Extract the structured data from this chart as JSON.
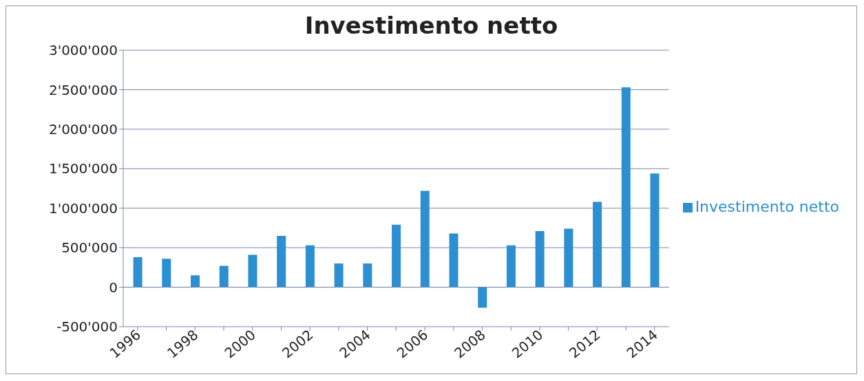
{
  "chart_data": {
    "type": "bar",
    "title": "Investimento netto",
    "categories": [
      "1996",
      null,
      "1998",
      null,
      "2000",
      null,
      "2002",
      null,
      "2004",
      null,
      "2006",
      null,
      "2008",
      null,
      "2010",
      null,
      "2012",
      null,
      "2014"
    ],
    "series": [
      {
        "name": "Investimento netto",
        "color": "#2b8fd1",
        "values": [
          380000,
          360000,
          150000,
          270000,
          410000,
          650000,
          530000,
          300000,
          300000,
          790000,
          1220000,
          680000,
          -260000,
          530000,
          710000,
          740000,
          1080000,
          2530000,
          1440000
        ]
      }
    ],
    "ylim": [
      -500000,
      3000000
    ],
    "yticks": [
      {
        "value": -500000,
        "label": "-500'000"
      },
      0,
      {
        "value": 500000,
        "label": "500'000"
      },
      {
        "value": 1000000,
        "label": "1'000'000"
      },
      {
        "value": 1500000,
        "label": "1'500'000"
      },
      {
        "value": 2000000,
        "label": "2'000'000"
      },
      {
        "value": 2500000,
        "label": "2'500'000"
      },
      {
        "value": 3000000,
        "label": "3'000'000"
      }
    ],
    "grid": "y",
    "legend": "right"
  }
}
